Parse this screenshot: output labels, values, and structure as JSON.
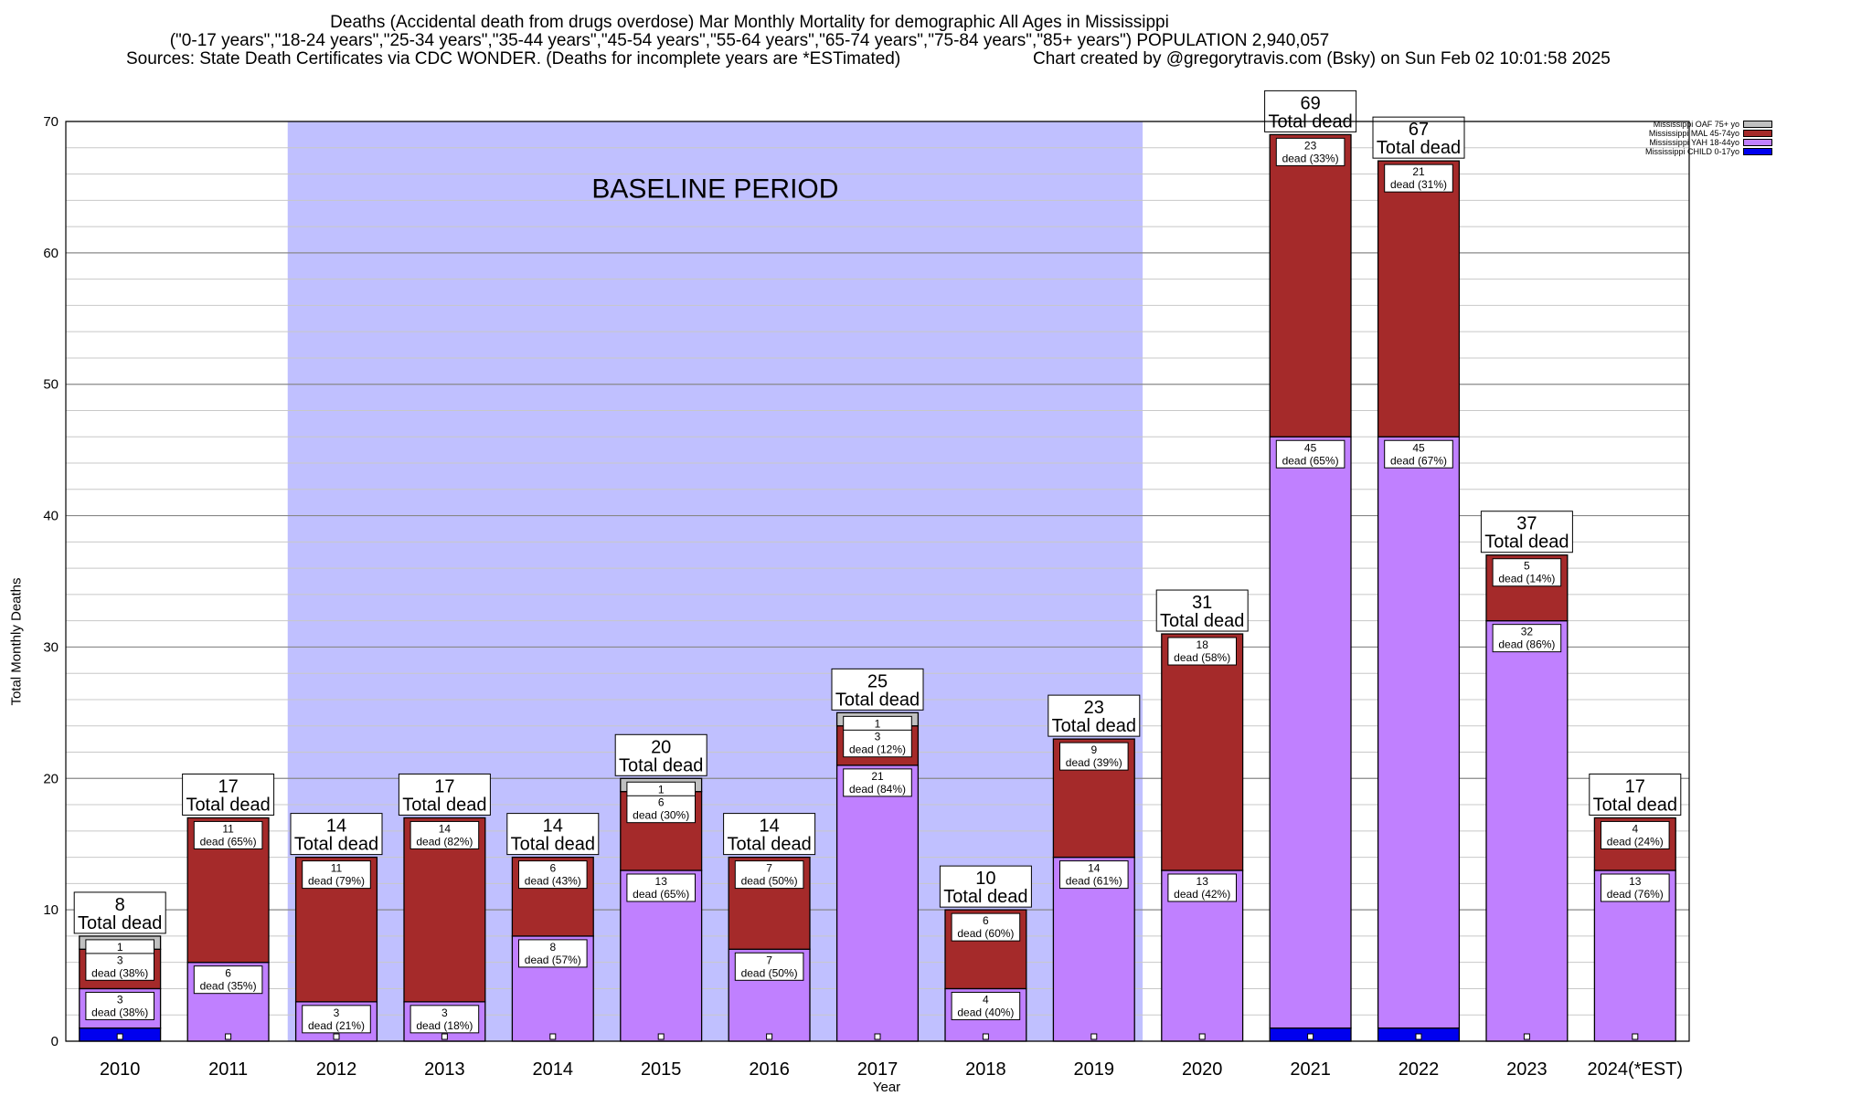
{
  "titles": {
    "line1": "Deaths (Accidental death from drugs overdose) Mar Monthly Mortality for demographic All Ages in Mississippi",
    "line2": "(\"0-17 years\",\"18-24 years\",\"25-34 years\",\"35-44 years\",\"45-54 years\",\"55-64 years\",\"65-74 years\",\"75-84 years\",\"85+ years\") POPULATION 2,940,057",
    "line3": "Sources: State Death Certificates via CDC WONDER. (Deaths for incomplete years are *ESTimated)",
    "line4": "Chart created by @gregorytravis.com (Bsky) on Sun Feb 02 10:01:58 2025"
  },
  "chart_data": {
    "type": "bar",
    "stacked": true,
    "categories": [
      "2010",
      "2011",
      "2012",
      "2013",
      "2014",
      "2015",
      "2016",
      "2017",
      "2018",
      "2019",
      "2020",
      "2021",
      "2022",
      "2023",
      "2024(*EST)"
    ],
    "series": [
      {
        "name": "Mississippi CHILD 0-17yo",
        "color": "#0000ee",
        "values": [
          1,
          0,
          0,
          0,
          0,
          0,
          0,
          0,
          0,
          0,
          0,
          1,
          1,
          0,
          0
        ]
      },
      {
        "name": "Mississippi YAH 18-44yo",
        "color": "#c080ff",
        "values": [
          3,
          6,
          3,
          3,
          8,
          13,
          7,
          21,
          4,
          14,
          13,
          45,
          45,
          32,
          13
        ]
      },
      {
        "name": "Mississippi MAL 45-74yo",
        "color": "#a52a2a",
        "values": [
          3,
          11,
          11,
          14,
          6,
          6,
          7,
          3,
          6,
          9,
          18,
          23,
          21,
          5,
          4
        ]
      },
      {
        "name": "Mississippi OAF 75+ yo",
        "color": "#c0c0c0",
        "values": [
          1,
          0,
          0,
          0,
          0,
          1,
          0,
          1,
          0,
          0,
          0,
          0,
          0,
          0,
          0
        ]
      }
    ],
    "segment_labels": [
      [
        {
          "v": "3",
          "p": "38%"
        },
        {
          "v": "3",
          "p": "38%"
        },
        {
          "v": "1",
          "p": ""
        }
      ],
      [
        {
          "v": "6",
          "p": "35%"
        },
        {
          "v": "11",
          "p": "65%"
        }
      ],
      [
        {
          "v": "3",
          "p": "21%"
        },
        {
          "v": "11",
          "p": "79%"
        }
      ],
      [
        {
          "v": "3",
          "p": "18%"
        },
        {
          "v": "14",
          "p": "82%"
        }
      ],
      [
        {
          "v": "8",
          "p": "57%"
        },
        {
          "v": "6",
          "p": "43%"
        }
      ],
      [
        {
          "v": "13",
          "p": "65%"
        },
        {
          "v": "6",
          "p": "30%"
        },
        {
          "v": "1",
          "p": ""
        }
      ],
      [
        {
          "v": "7",
          "p": "50%"
        },
        {
          "v": "7",
          "p": "50%"
        }
      ],
      [
        {
          "v": "21",
          "p": "84%"
        },
        {
          "v": "3",
          "p": "12%"
        },
        {
          "v": "1",
          "p": ""
        }
      ],
      [
        {
          "v": "4",
          "p": "40%"
        },
        {
          "v": "6",
          "p": "60%"
        }
      ],
      [
        {
          "v": "14",
          "p": "61%"
        },
        {
          "v": "9",
          "p": "39%"
        }
      ],
      [
        {
          "v": "13",
          "p": "42%"
        },
        {
          "v": "18",
          "p": "58%"
        }
      ],
      [
        {
          "v": "45",
          "p": "65%"
        },
        {
          "v": "23",
          "p": "33%"
        }
      ],
      [
        {
          "v": "45",
          "p": "67%"
        },
        {
          "v": "21",
          "p": "31%"
        }
      ],
      [
        {
          "v": "32",
          "p": "86%"
        },
        {
          "v": "5",
          "p": "14%"
        }
      ],
      [
        {
          "v": "13",
          "p": "76%"
        },
        {
          "v": "4",
          "p": "24%"
        }
      ]
    ],
    "totals": [
      8,
      17,
      14,
      17,
      14,
      20,
      14,
      25,
      10,
      23,
      31,
      69,
      67,
      37,
      17
    ],
    "total_suffix": "Total dead",
    "dead_word": "dead",
    "baseline": {
      "label": "BASELINE PERIOD",
      "from": "2012",
      "to": "2019",
      "color": "#c0c0ff"
    },
    "ylabel": "Total Monthly Deaths",
    "xlabel": "Year",
    "ylim": [
      0,
      70
    ],
    "yticks": [
      0,
      10,
      20,
      30,
      40,
      50,
      60,
      70
    ],
    "grid": true,
    "legend_position": "top-right"
  }
}
